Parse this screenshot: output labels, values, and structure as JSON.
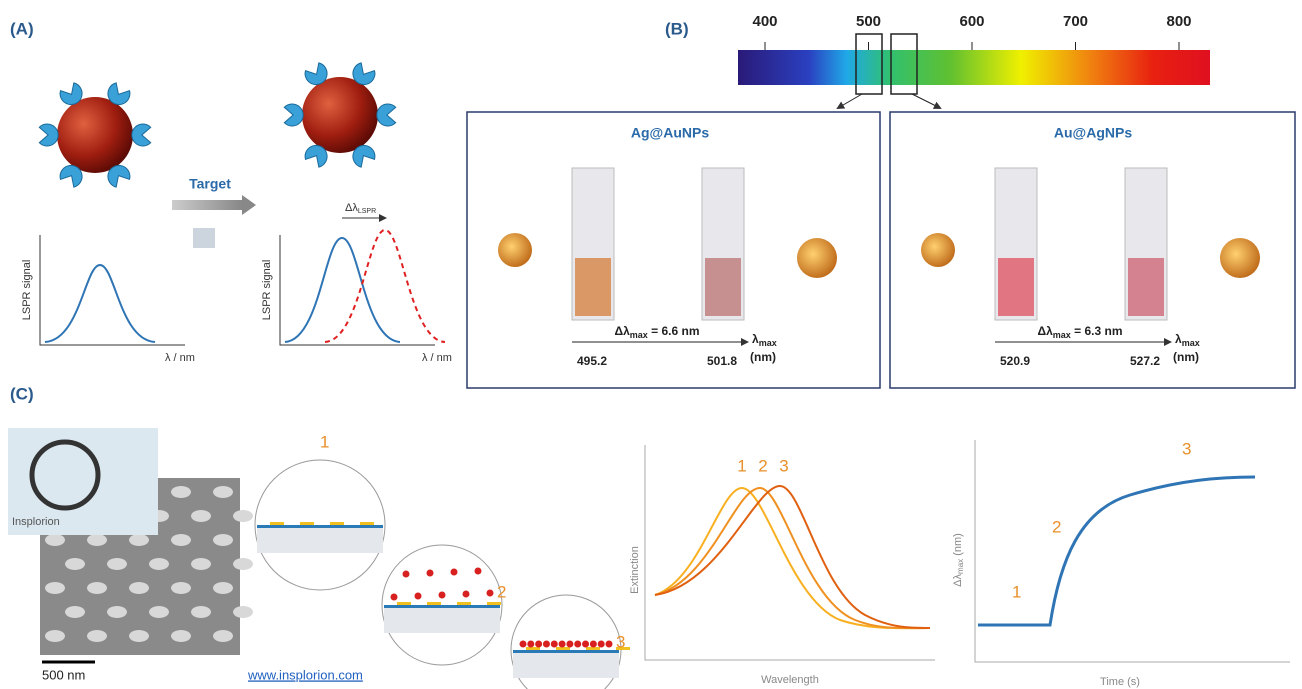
{
  "panel_a": {
    "label": "(A)",
    "target": "Target",
    "plot_left": {
      "y_label": "LSPR signal",
      "x_label": "λ / nm"
    },
    "plot_right": {
      "y_label": "LSPR signal",
      "x_label": "λ / nm",
      "shift": {
        "symbol": "Δλ",
        "sub": "LSPR"
      }
    }
  },
  "panel_b": {
    "label": "(B)",
    "spectrum_ticks": [
      400,
      500,
      600,
      700,
      800
    ],
    "boxes": [
      {
        "title": "Ag@AuNPs",
        "shift": {
          "symbol": "Δλ",
          "sub": "max",
          "rest": " = 6.6 nm"
        },
        "start": 495.2,
        "end": 501.8,
        "axis": {
          "symbol": "λ",
          "sub": "max",
          "unit": "(nm)"
        }
      },
      {
        "title": "Au@AgNPs",
        "shift": {
          "symbol": "Δλ",
          "sub": "max",
          "rest": " = 6.3 nm"
        },
        "start": 520.9,
        "end": 527.2,
        "axis": {
          "symbol": "λ",
          "sub": "max",
          "unit": "(nm)"
        }
      }
    ]
  },
  "panel_c": {
    "label": "(C)",
    "inset_brand": "Insplorion",
    "scale_bar": "500 nm",
    "link": "www.insplorion.com",
    "steps": [
      "1",
      "2",
      "3"
    ],
    "extinction": {
      "y_label": "Extinction",
      "x_label": "Wavelength",
      "peaks": [
        "1",
        "2",
        "3"
      ]
    },
    "kinetics": {
      "y_label": {
        "symbol": "Δλ",
        "sub": "max",
        "unit": " (nm)"
      },
      "x_label": "Time (s)",
      "phases": [
        "1",
        "2",
        "3"
      ]
    }
  }
}
